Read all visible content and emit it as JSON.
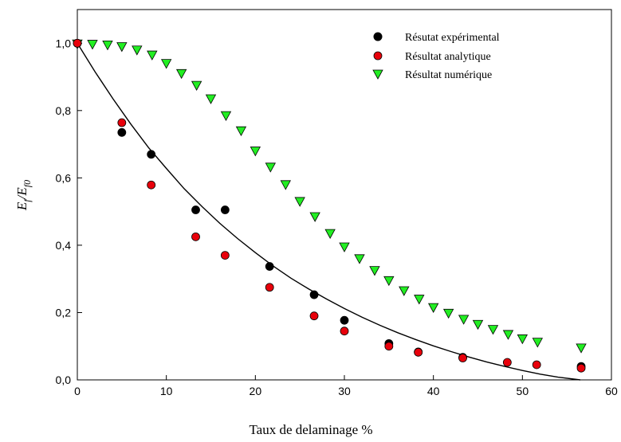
{
  "chart_data": {
    "type": "scatter",
    "title": "",
    "xlabel": "Taux de delaminage %",
    "ylabel": {
      "base1": "E",
      "sub1": "f",
      "slash": "/",
      "base2": "E",
      "sub2": "f0"
    },
    "xlim": [
      0,
      60
    ],
    "ylim": [
      0,
      1.1
    ],
    "xticks": [
      0,
      10,
      20,
      30,
      40,
      50,
      60
    ],
    "yticks": [
      0.0,
      0.2,
      0.4,
      0.6,
      0.8,
      1.0
    ],
    "xtick_labels": [
      "0",
      "10",
      "20",
      "30",
      "40",
      "50",
      "60"
    ],
    "ytick_labels": [
      "0,0",
      "0,2",
      "0,4",
      "0,6",
      "0,8",
      "1,0"
    ],
    "grid": false,
    "legend_position": "top-right",
    "series": [
      {
        "name": "Résutat expérimental",
        "marker": "circle",
        "color": "#000000",
        "x": [
          0,
          5,
          8.3,
          13.3,
          16.6,
          21.6,
          26.6,
          30,
          35,
          38.3,
          43.3,
          56.6
        ],
        "y": [
          1.0,
          0.735,
          0.67,
          0.505,
          0.505,
          0.337,
          0.253,
          0.177,
          0.108,
          0.083,
          0.067,
          0.04
        ]
      },
      {
        "name": "Résultat analytique",
        "marker": "circle",
        "color": "#e8000b",
        "x": [
          0,
          5,
          8.3,
          13.3,
          16.6,
          21.6,
          26.6,
          30,
          35,
          38.3,
          43.3,
          48.3,
          51.6,
          56.6
        ],
        "y": [
          1.0,
          0.764,
          0.579,
          0.425,
          0.37,
          0.275,
          0.19,
          0.145,
          0.1,
          0.082,
          0.065,
          0.052,
          0.045,
          0.035
        ]
      },
      {
        "name": "Résultat numérique",
        "marker": "triangle-down",
        "color": "#22ee22",
        "x": [
          0,
          1.7,
          3.4,
          5,
          6.7,
          8.4,
          10,
          11.7,
          13.4,
          15,
          16.7,
          18.4,
          20,
          21.7,
          23.4,
          25,
          26.7,
          28.4,
          30,
          31.7,
          33.4,
          35,
          36.7,
          38.4,
          40,
          41.7,
          43.4,
          45,
          46.7,
          48.4,
          50,
          51.7,
          56.6
        ],
        "y": [
          0.998,
          0.997,
          0.995,
          0.99,
          0.98,
          0.965,
          0.94,
          0.91,
          0.875,
          0.835,
          0.785,
          0.74,
          0.68,
          0.632,
          0.58,
          0.53,
          0.485,
          0.435,
          0.395,
          0.36,
          0.325,
          0.295,
          0.265,
          0.24,
          0.215,
          0.198,
          0.18,
          0.165,
          0.15,
          0.135,
          0.122,
          0.112,
          0.095
        ]
      }
    ],
    "fit_curve": {
      "color": "#000000",
      "x": [
        0,
        2,
        4,
        6,
        8,
        10,
        12,
        14,
        16,
        18,
        20,
        22,
        24,
        26,
        28,
        30,
        32,
        34,
        36,
        38,
        40,
        42,
        44,
        46,
        48,
        50,
        52,
        54,
        56.5
      ],
      "y": [
        1.0,
        0.915,
        0.835,
        0.76,
        0.69,
        0.628,
        0.568,
        0.515,
        0.465,
        0.42,
        0.378,
        0.338,
        0.302,
        0.27,
        0.24,
        0.212,
        0.186,
        0.162,
        0.14,
        0.12,
        0.101,
        0.084,
        0.068,
        0.053,
        0.04,
        0.028,
        0.017,
        0.008,
        0.0
      ]
    }
  }
}
